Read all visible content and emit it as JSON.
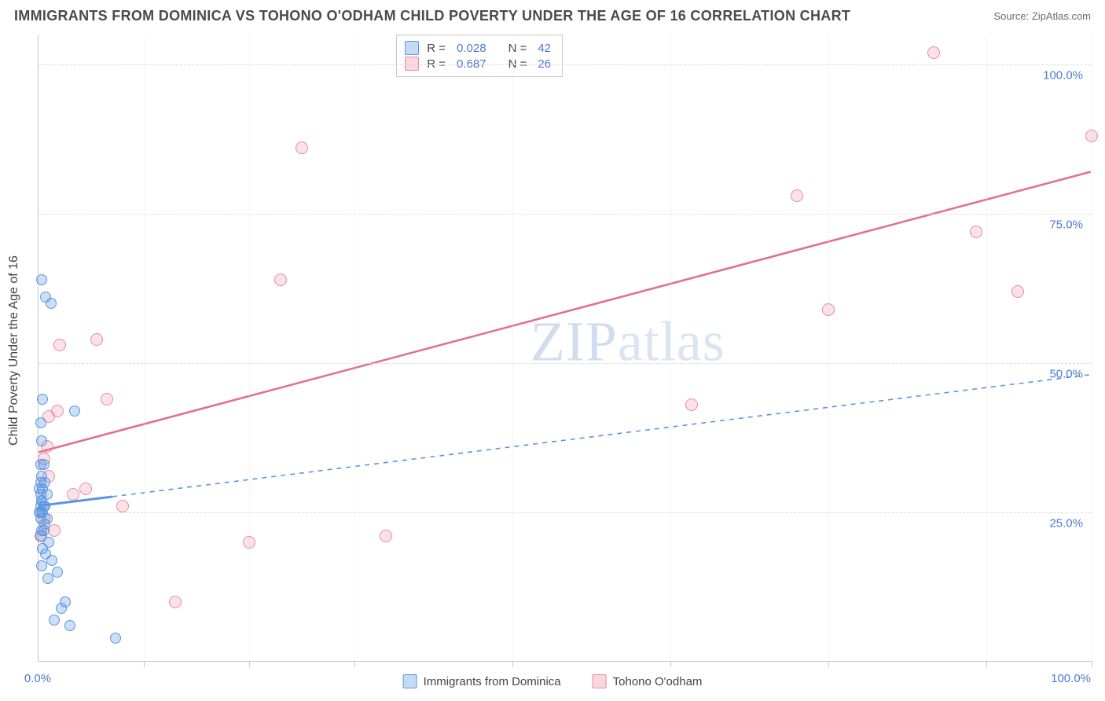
{
  "title": "IMMIGRANTS FROM DOMINICA VS TOHONO O'ODHAM CHILD POVERTY UNDER THE AGE OF 16 CORRELATION CHART",
  "source": "Source: ZipAtlas.com",
  "watermark_a": "ZIP",
  "watermark_b": "atlas",
  "y_axis_label": "Child Poverty Under the Age of 16",
  "series": [
    {
      "key": "blue",
      "label": "Immigrants from Dominica",
      "color": "#5a96e1",
      "fill": "rgba(90,150,225,0.30)",
      "r_label": "R =",
      "r_value": "0.028",
      "n_label": "N =",
      "n_value": "42",
      "trend": {
        "x1": 0,
        "y1": 26,
        "x2": 100,
        "y2": 48,
        "dashed": true,
        "width": 1.6,
        "solid_until_x": 7
      }
    },
    {
      "key": "pink",
      "label": "Tohono O'odham",
      "color": "#e27095",
      "fill": "rgba(235,110,140,0.20)",
      "r_label": "R =",
      "r_value": "0.687",
      "n_label": "N =",
      "n_value": "26",
      "trend": {
        "x1": 0,
        "y1": 35,
        "x2": 100,
        "y2": 82,
        "dashed": false,
        "width": 2.6
      }
    }
  ],
  "x_ticks": [
    {
      "pos": 0,
      "label": "0.0%"
    },
    {
      "pos": 10,
      "label": ""
    },
    {
      "pos": 20,
      "label": ""
    },
    {
      "pos": 30,
      "label": ""
    },
    {
      "pos": 45,
      "label": ""
    },
    {
      "pos": 60,
      "label": ""
    },
    {
      "pos": 75,
      "label": ""
    },
    {
      "pos": 90,
      "label": ""
    },
    {
      "pos": 100,
      "label": "100.0%"
    }
  ],
  "y_ticks": [
    {
      "pos": 25,
      "label": "25.0%"
    },
    {
      "pos": 50,
      "label": "50.0%"
    },
    {
      "pos": 75,
      "label": "75.0%"
    },
    {
      "pos": 100,
      "label": "100.0%"
    }
  ],
  "y_range": [
    0,
    105
  ],
  "x_range": [
    0,
    100
  ],
  "points_blue": [
    [
      0.3,
      64
    ],
    [
      0.7,
      61
    ],
    [
      1.2,
      60
    ],
    [
      0.4,
      44
    ],
    [
      0.2,
      40
    ],
    [
      0.3,
      37
    ],
    [
      0.2,
      33
    ],
    [
      0.5,
      33
    ],
    [
      0.3,
      31
    ],
    [
      0.6,
      30
    ],
    [
      0.2,
      30
    ],
    [
      0.4,
      29
    ],
    [
      0.1,
      29
    ],
    [
      0.8,
      28
    ],
    [
      0.2,
      28
    ],
    [
      0.3,
      27
    ],
    [
      0.3,
      27
    ],
    [
      0.5,
      26
    ],
    [
      0.2,
      26
    ],
    [
      0.6,
      26
    ],
    [
      0.2,
      25
    ],
    [
      0.4,
      25
    ],
    [
      0.1,
      25
    ],
    [
      0.8,
      24
    ],
    [
      0.2,
      24
    ],
    [
      0.6,
      23
    ],
    [
      0.3,
      22
    ],
    [
      0.5,
      22
    ],
    [
      0.2,
      21
    ],
    [
      1.0,
      20
    ],
    [
      0.4,
      19
    ],
    [
      0.7,
      18
    ],
    [
      1.3,
      17
    ],
    [
      0.3,
      16
    ],
    [
      1.8,
      15
    ],
    [
      0.9,
      14
    ],
    [
      2.5,
      10
    ],
    [
      2.2,
      9
    ],
    [
      1.5,
      7
    ],
    [
      3.0,
      6
    ],
    [
      7.3,
      4
    ],
    [
      3.4,
      42
    ]
  ],
  "points_pink": [
    [
      85,
      102
    ],
    [
      100,
      88
    ],
    [
      72,
      78
    ],
    [
      89,
      72
    ],
    [
      93,
      62
    ],
    [
      75,
      59
    ],
    [
      62,
      43
    ],
    [
      25,
      86
    ],
    [
      23,
      64
    ],
    [
      1,
      41
    ],
    [
      1.8,
      42
    ],
    [
      6.5,
      44
    ],
    [
      2.0,
      53
    ],
    [
      5.5,
      54
    ],
    [
      0.5,
      34
    ],
    [
      4.5,
      29
    ],
    [
      3.3,
      28
    ],
    [
      8,
      26
    ],
    [
      0.5,
      24
    ],
    [
      1.5,
      22
    ],
    [
      0.2,
      21
    ],
    [
      20,
      20
    ],
    [
      33,
      21
    ],
    [
      13,
      10
    ],
    [
      1,
      31
    ],
    [
      0.8,
      36
    ]
  ],
  "colors": {
    "title": "#4a4a4a",
    "axis_text": "#4a7bd0",
    "grid": "#dcdcdc",
    "border": "#c8c8c8",
    "background": "#ffffff"
  },
  "typography": {
    "title_fontsize": 18,
    "axis_label_fontsize": 16,
    "tick_fontsize": 15,
    "watermark_fontsize": 72
  }
}
